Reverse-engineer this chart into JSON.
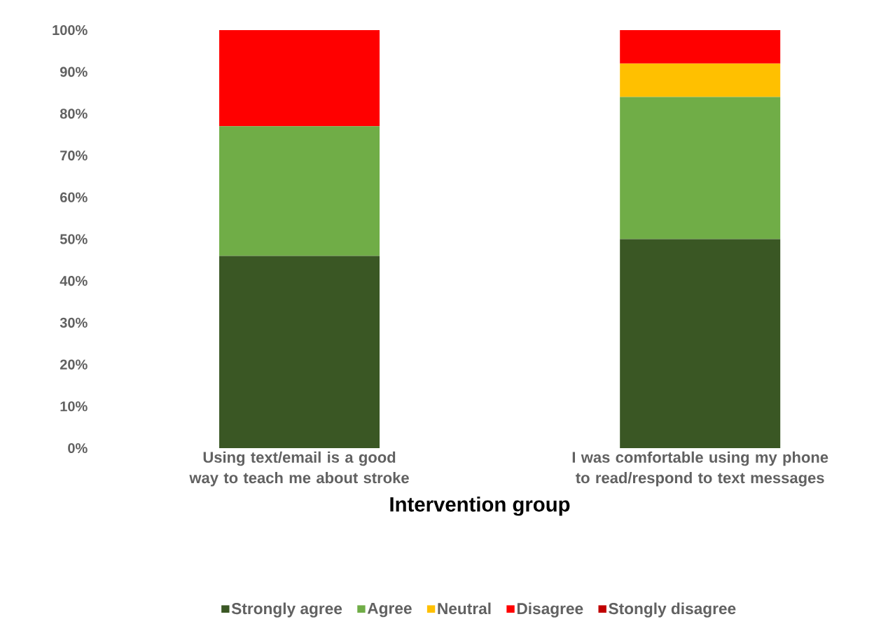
{
  "chart_data": {
    "type": "bar",
    "stacked": true,
    "xlabel": "Intervention group",
    "legend": "bottom",
    "categories": [
      "Using text/email is a good way to teach me about stroke",
      "I was comfortable using my phone to read/respond to text messages"
    ],
    "series": [
      {
        "name": "Strongly agree",
        "color": "#3a5724",
        "values": [
          46,
          50
        ]
      },
      {
        "name": "Agree",
        "color": "#70ad47",
        "values": [
          31,
          34
        ]
      },
      {
        "name": "Neutral",
        "color": "#ffc000",
        "values": [
          0,
          8
        ]
      },
      {
        "name": "Disagree",
        "color": "#ff0000",
        "values": [
          23,
          8
        ]
      },
      {
        "name": "Stongly disagree",
        "color": "#c00000",
        "values": [
          0,
          0
        ]
      }
    ],
    "ylim": [
      0,
      100
    ],
    "yticks": [
      {
        "value": 0,
        "label": "0%"
      },
      {
        "value": 10,
        "label": "10%"
      },
      {
        "value": 20,
        "label": "20%"
      },
      {
        "value": 30,
        "label": "30%"
      },
      {
        "value": 40,
        "label": "40%"
      },
      {
        "value": 50,
        "label": "50%"
      },
      {
        "value": 60,
        "label": "60%"
      },
      {
        "value": 70,
        "label": "70%"
      },
      {
        "value": 80,
        "label": "80%"
      },
      {
        "value": 90,
        "label": "90%"
      },
      {
        "value": 100,
        "label": "100%"
      }
    ]
  }
}
